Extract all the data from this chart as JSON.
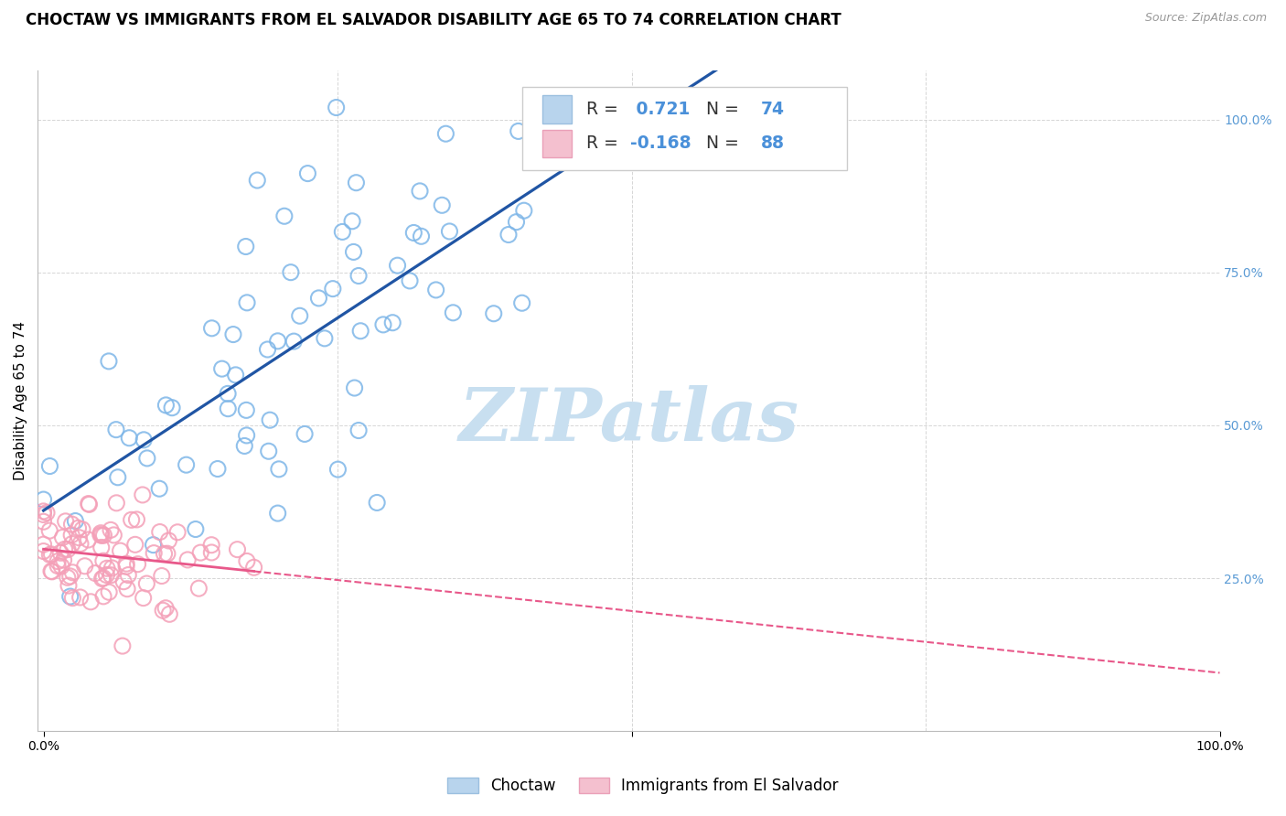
{
  "title": "CHOCTAW VS IMMIGRANTS FROM EL SALVADOR DISABILITY AGE 65 TO 74 CORRELATION CHART",
  "source": "Source: ZipAtlas.com",
  "ylabel": "Disability Age 65 to 74",
  "choctaw_R": 0.721,
  "choctaw_N": 74,
  "salvador_R": -0.168,
  "salvador_N": 88,
  "blue_edge_color": "#7EB6E8",
  "pink_edge_color": "#F4A0B8",
  "blue_line_color": "#2055A4",
  "pink_line_color": "#E8588A",
  "background_color": "#FFFFFF",
  "grid_color": "#CCCCCC",
  "watermark": "ZIPatlas",
  "watermark_color": "#C8DFF0",
  "legend_label_1": "Choctaw",
  "legend_label_2": "Immigrants from El Salvador",
  "title_fontsize": 12,
  "axis_label_fontsize": 11,
  "tick_fontsize": 10,
  "right_tick_color": "#5B9BD5",
  "seed": 42
}
